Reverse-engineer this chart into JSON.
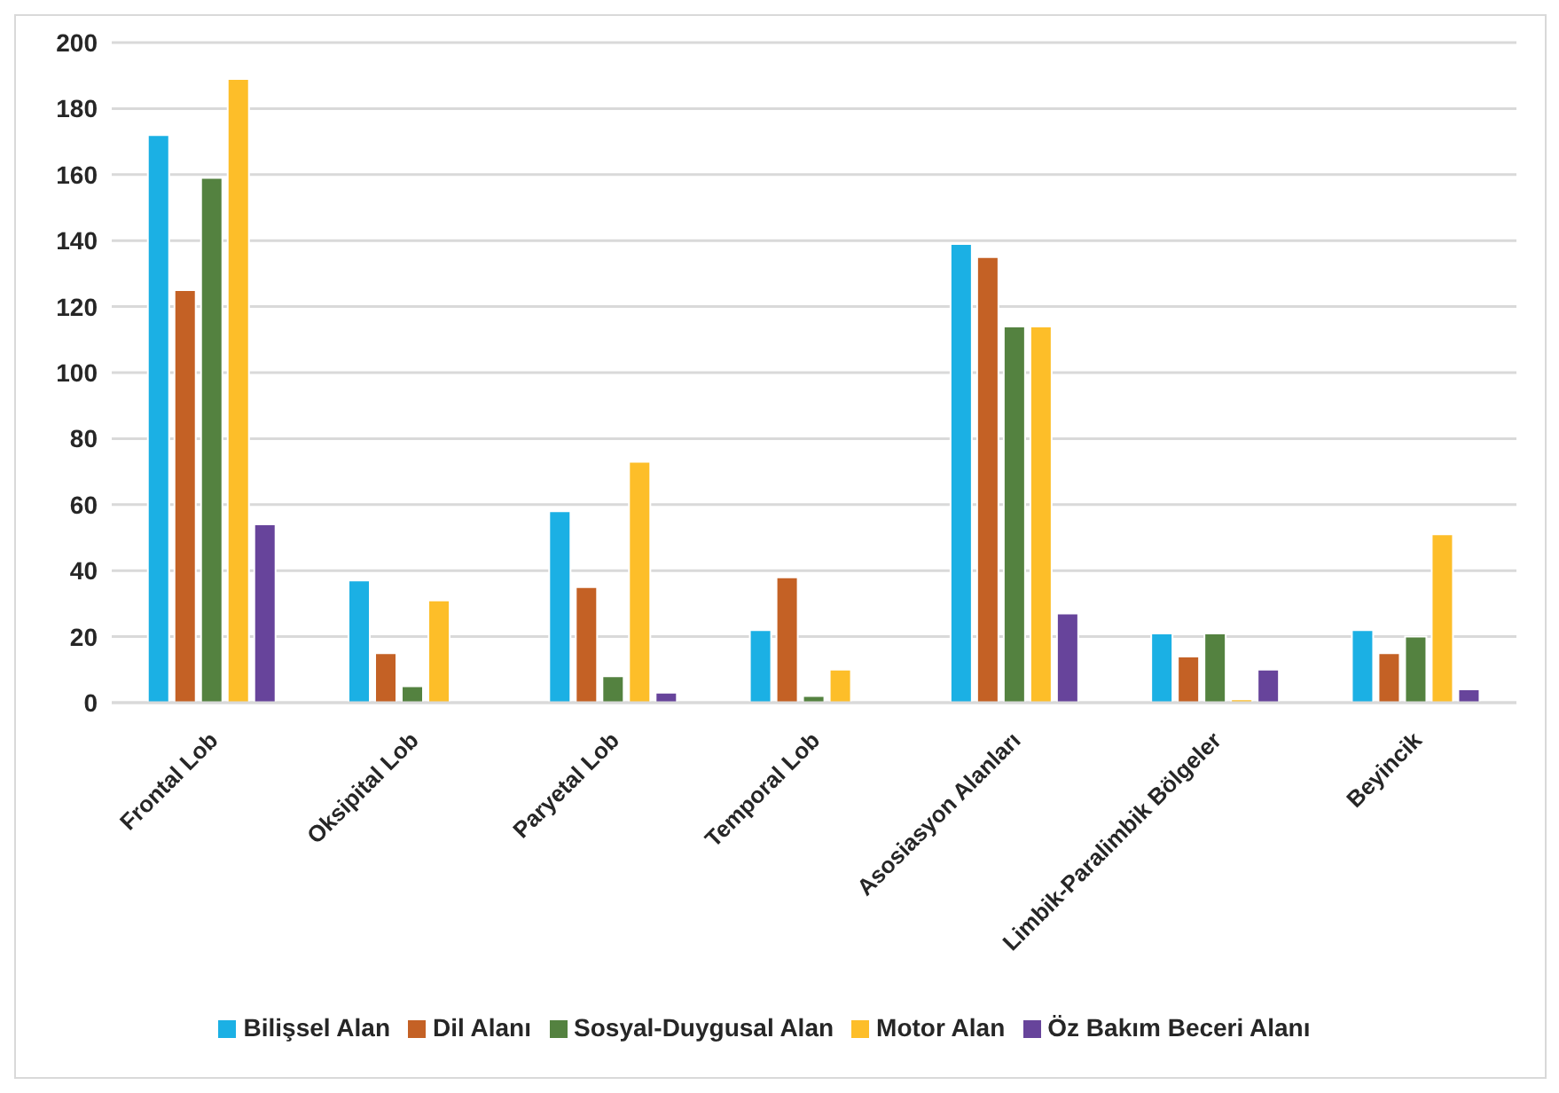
{
  "chart_data": {
    "type": "bar",
    "categories": [
      "Frontal Lob",
      "Oksipital Lob",
      "Paryetal Lob",
      "Temporal Lob",
      "Asosiasyon Alanları",
      "Limbik-Paralimbik Bölgeler",
      "Beyincik"
    ],
    "series": [
      {
        "name": "Bilişsel Alan",
        "color": "#1bb0e4",
        "values": [
          172,
          37,
          58,
          22,
          139,
          21,
          22
        ]
      },
      {
        "name": "Dil Alanı",
        "color": "#c46125",
        "values": [
          125,
          15,
          35,
          38,
          135,
          14,
          15
        ]
      },
      {
        "name": "Sosyal-Duygusal Alan",
        "color": "#548240",
        "values": [
          159,
          5,
          8,
          2,
          114,
          21,
          20
        ]
      },
      {
        "name": "Motor Alan",
        "color": "#fdbe29",
        "values": [
          189,
          31,
          73,
          10,
          114,
          1,
          51
        ]
      },
      {
        "name": "Öz Bakım Beceri Alanı",
        "color": "#67449b",
        "values": [
          54,
          0,
          3,
          0,
          27,
          10,
          4
        ]
      }
    ],
    "ylim": [
      0,
      200
    ],
    "yticks": [
      0,
      20,
      40,
      60,
      80,
      100,
      120,
      140,
      160,
      180,
      200
    ],
    "grid": "y",
    "legend": "bottom"
  }
}
